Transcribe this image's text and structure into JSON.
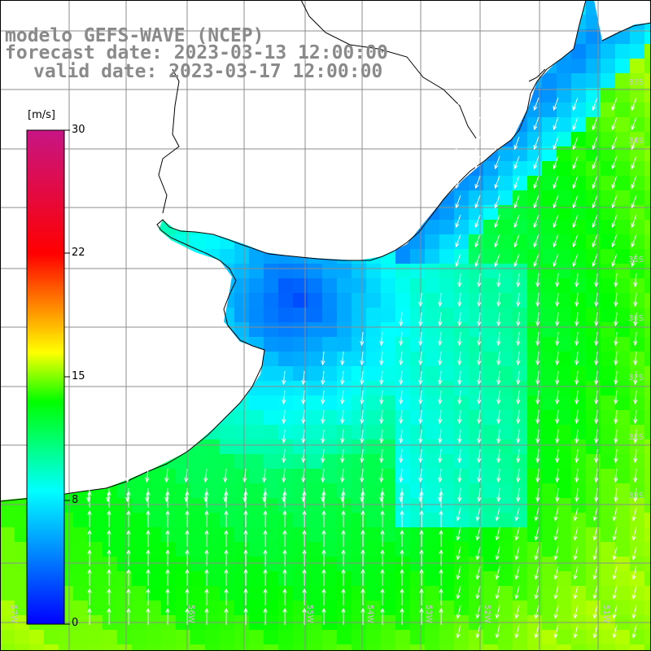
{
  "titles": {
    "model": "modelo GEFS-WAVE (NCEP)",
    "forecast": "forecast date: 2023-03-13 12:00:00",
    "valid": "valid date: 2023-03-17 12:00:00"
  },
  "colorbar": {
    "unit": "[m/s]",
    "ticks": [
      "30",
      "22",
      "15",
      "8",
      "0"
    ],
    "tick_values": [
      30,
      22,
      15,
      8,
      0
    ],
    "vmin": 0,
    "vmax": 30,
    "colors": [
      "#0000ff",
      "#00ffff",
      "#00ff00",
      "#ffff00",
      "#ff0000",
      "#c71585"
    ]
  },
  "map": {
    "lat_labels": [
      "33S",
      "34S",
      "35S",
      "36S",
      "37S",
      "38S",
      "39S"
    ],
    "lon_labels": [
      "57W",
      "56W",
      "55W",
      "54W",
      "53W",
      "52W",
      "51W"
    ],
    "land_color": "#ffffff",
    "grid_color": "#8c8c8c",
    "coast_color": "#000000",
    "arrow_color": "#ffffff"
  }
}
